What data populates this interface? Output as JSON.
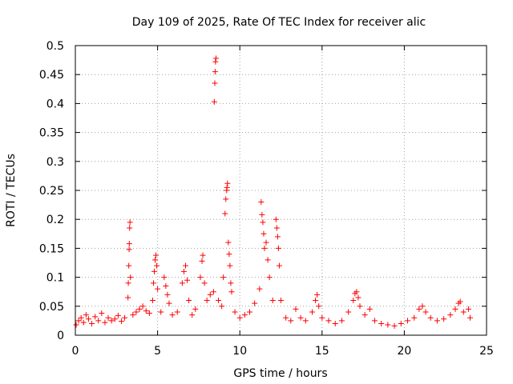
{
  "chart_data": {
    "type": "scatter",
    "title": "Day 109 of 2025, Rate Of TEC Index for receiver alic",
    "xlabel": "GPS time / hours",
    "ylabel": "ROTI / TECUs",
    "xlim": [
      0,
      25
    ],
    "ylim": [
      0,
      0.5
    ],
    "xticks": [
      0,
      5,
      10,
      15,
      20,
      25
    ],
    "xtick_labels": [
      "0",
      "5",
      "10",
      "15",
      "20",
      "25"
    ],
    "yticks": [
      0,
      0.05,
      0.1,
      0.15,
      0.2,
      0.25,
      0.3,
      0.35,
      0.4,
      0.45,
      0.5
    ],
    "ytick_labels": [
      "0",
      "0.05",
      "0.1",
      "0.15",
      "0.2",
      "0.25",
      "0.3",
      "0.35",
      "0.4",
      "0.45",
      "0.5"
    ],
    "grid": true,
    "marker": "+",
    "marker_color": "#ff0000",
    "series": [
      {
        "name": "ROTI",
        "points": [
          [
            0.05,
            0.018
          ],
          [
            0.2,
            0.025
          ],
          [
            0.35,
            0.03
          ],
          [
            0.5,
            0.022
          ],
          [
            0.65,
            0.035
          ],
          [
            0.8,
            0.028
          ],
          [
            1.0,
            0.02
          ],
          [
            1.2,
            0.032
          ],
          [
            1.4,
            0.025
          ],
          [
            1.6,
            0.038
          ],
          [
            1.8,
            0.022
          ],
          [
            2.0,
            0.03
          ],
          [
            2.2,
            0.025
          ],
          [
            2.4,
            0.028
          ],
          [
            2.6,
            0.034
          ],
          [
            2.8,
            0.024
          ],
          [
            3.0,
            0.03
          ],
          [
            3.2,
            0.065
          ],
          [
            3.22,
            0.09
          ],
          [
            3.25,
            0.12
          ],
          [
            3.27,
            0.148
          ],
          [
            3.28,
            0.158
          ],
          [
            3.3,
            0.185
          ],
          [
            3.32,
            0.195
          ],
          [
            3.35,
            0.1
          ],
          [
            3.5,
            0.035
          ],
          [
            3.7,
            0.04
          ],
          [
            3.9,
            0.045
          ],
          [
            4.1,
            0.05
          ],
          [
            4.3,
            0.042
          ],
          [
            4.5,
            0.038
          ],
          [
            4.7,
            0.06
          ],
          [
            4.75,
            0.09
          ],
          [
            4.8,
            0.11
          ],
          [
            4.85,
            0.13
          ],
          [
            4.9,
            0.138
          ],
          [
            4.95,
            0.12
          ],
          [
            5.0,
            0.08
          ],
          [
            5.2,
            0.04
          ],
          [
            5.4,
            0.1
          ],
          [
            5.5,
            0.085
          ],
          [
            5.6,
            0.07
          ],
          [
            5.7,
            0.055
          ],
          [
            5.9,
            0.035
          ],
          [
            6.2,
            0.04
          ],
          [
            6.5,
            0.09
          ],
          [
            6.6,
            0.11
          ],
          [
            6.7,
            0.12
          ],
          [
            6.8,
            0.095
          ],
          [
            6.9,
            0.06
          ],
          [
            7.1,
            0.035
          ],
          [
            7.3,
            0.045
          ],
          [
            7.6,
            0.1
          ],
          [
            7.7,
            0.128
          ],
          [
            7.75,
            0.138
          ],
          [
            7.85,
            0.09
          ],
          [
            8.0,
            0.06
          ],
          [
            8.2,
            0.07
          ],
          [
            8.4,
            0.075
          ],
          [
            8.45,
            0.403
          ],
          [
            8.48,
            0.435
          ],
          [
            8.5,
            0.455
          ],
          [
            8.52,
            0.472
          ],
          [
            8.55,
            0.478
          ],
          [
            8.7,
            0.06
          ],
          [
            8.9,
            0.05
          ],
          [
            9.0,
            0.1
          ],
          [
            9.1,
            0.21
          ],
          [
            9.15,
            0.235
          ],
          [
            9.2,
            0.25
          ],
          [
            9.22,
            0.255
          ],
          [
            9.25,
            0.262
          ],
          [
            9.3,
            0.16
          ],
          [
            9.35,
            0.14
          ],
          [
            9.4,
            0.12
          ],
          [
            9.45,
            0.09
          ],
          [
            9.5,
            0.075
          ],
          [
            9.7,
            0.04
          ],
          [
            10.0,
            0.03
          ],
          [
            10.3,
            0.035
          ],
          [
            10.6,
            0.04
          ],
          [
            10.9,
            0.055
          ],
          [
            11.2,
            0.08
          ],
          [
            11.3,
            0.23
          ],
          [
            11.35,
            0.208
          ],
          [
            11.4,
            0.195
          ],
          [
            11.45,
            0.175
          ],
          [
            11.5,
            0.15
          ],
          [
            11.6,
            0.16
          ],
          [
            11.7,
            0.13
          ],
          [
            11.8,
            0.1
          ],
          [
            12.0,
            0.06
          ],
          [
            12.2,
            0.2
          ],
          [
            12.25,
            0.185
          ],
          [
            12.3,
            0.17
          ],
          [
            12.35,
            0.15
          ],
          [
            12.4,
            0.12
          ],
          [
            12.5,
            0.06
          ],
          [
            12.8,
            0.03
          ],
          [
            13.1,
            0.025
          ],
          [
            13.4,
            0.045
          ],
          [
            13.7,
            0.03
          ],
          [
            14.0,
            0.025
          ],
          [
            14.4,
            0.04
          ],
          [
            14.6,
            0.06
          ],
          [
            14.7,
            0.07
          ],
          [
            14.8,
            0.05
          ],
          [
            15.0,
            0.03
          ],
          [
            15.4,
            0.025
          ],
          [
            15.8,
            0.02
          ],
          [
            16.2,
            0.025
          ],
          [
            16.6,
            0.04
          ],
          [
            16.9,
            0.06
          ],
          [
            17.0,
            0.072
          ],
          [
            17.1,
            0.075
          ],
          [
            17.2,
            0.065
          ],
          [
            17.3,
            0.05
          ],
          [
            17.6,
            0.035
          ],
          [
            17.9,
            0.045
          ],
          [
            18.2,
            0.025
          ],
          [
            18.6,
            0.02
          ],
          [
            19.0,
            0.018
          ],
          [
            19.4,
            0.016
          ],
          [
            19.8,
            0.02
          ],
          [
            20.2,
            0.025
          ],
          [
            20.6,
            0.03
          ],
          [
            20.9,
            0.045
          ],
          [
            21.1,
            0.05
          ],
          [
            21.3,
            0.04
          ],
          [
            21.6,
            0.03
          ],
          [
            22.0,
            0.025
          ],
          [
            22.4,
            0.028
          ],
          [
            22.8,
            0.035
          ],
          [
            23.1,
            0.045
          ],
          [
            23.3,
            0.055
          ],
          [
            23.4,
            0.058
          ],
          [
            23.6,
            0.04
          ],
          [
            23.9,
            0.045
          ],
          [
            24.0,
            0.03
          ]
        ]
      }
    ]
  }
}
